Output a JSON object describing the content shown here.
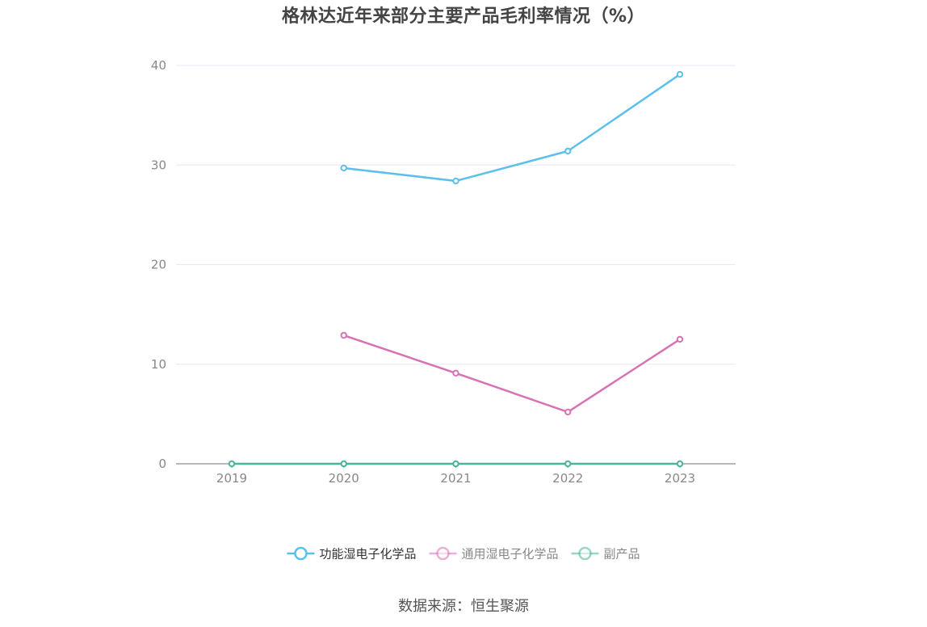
{
  "chart_data": {
    "type": "line",
    "title": "格林达近年来部分主要产品毛利率情况（%）",
    "categories": [
      "2019",
      "2020",
      "2021",
      "2022",
      "2023"
    ],
    "ylim": [
      0,
      40
    ],
    "yticks": [
      0,
      10,
      20,
      30,
      40
    ],
    "grid": true,
    "legend_position": "bottom",
    "series": [
      {
        "name": "功能湿电子化学品",
        "color": "#5bc0eb",
        "legend_text_color": "#333333",
        "values": [
          null,
          29.7,
          28.4,
          31.4,
          39.1
        ]
      },
      {
        "name": "通用湿电子化学品",
        "color": "#d872b4",
        "legend_text_color": "#888888",
        "values": [
          null,
          12.9,
          9.1,
          5.2,
          12.5
        ]
      },
      {
        "name": "副产品",
        "color": "#4db39a",
        "legend_text_color": "#888888",
        "values": [
          0,
          0,
          0,
          0,
          0
        ]
      }
    ]
  },
  "footer": {
    "source": "数据来源：恒生聚源"
  }
}
